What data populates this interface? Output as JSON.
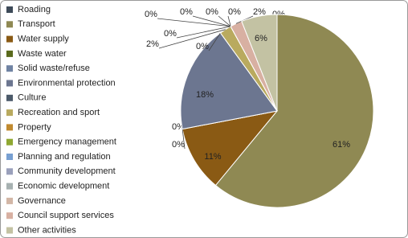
{
  "chart_data": {
    "type": "pie",
    "categories": [
      "Roading",
      "Transport",
      "Water supply",
      "Waste water",
      "Solid waste/refuse",
      "Environmental protection",
      "Culture",
      "Recreation and sport",
      "Property",
      "Emergency management",
      "Planning and regulation",
      "Community development",
      "Economic development",
      "Governance",
      "Council support services",
      "Other activities"
    ],
    "values": [
      0,
      61,
      11,
      0,
      0,
      18,
      0,
      2,
      0,
      0,
      0,
      0,
      0,
      0,
      2,
      6
    ],
    "value_labels": [
      "0%",
      "61%",
      "11%",
      "0%",
      "0%",
      "18%",
      "0%",
      "2%",
      "0%",
      "0%",
      "0%",
      "0%",
      "0%",
      "0%",
      "2%",
      "6%"
    ],
    "colors": [
      "#3d4a58",
      "#8f8953",
      "#8a5a14",
      "#5a6a1c",
      "#7083a3",
      "#6c7690",
      "#4c5a6a",
      "#b9aa5f",
      "#c08a30",
      "#8fa832",
      "#78a0d2",
      "#9aa0bb",
      "#a7b1b1",
      "#d2b6a6",
      "#d8b0a2",
      "#c3c2a3"
    ],
    "legend": "left"
  }
}
